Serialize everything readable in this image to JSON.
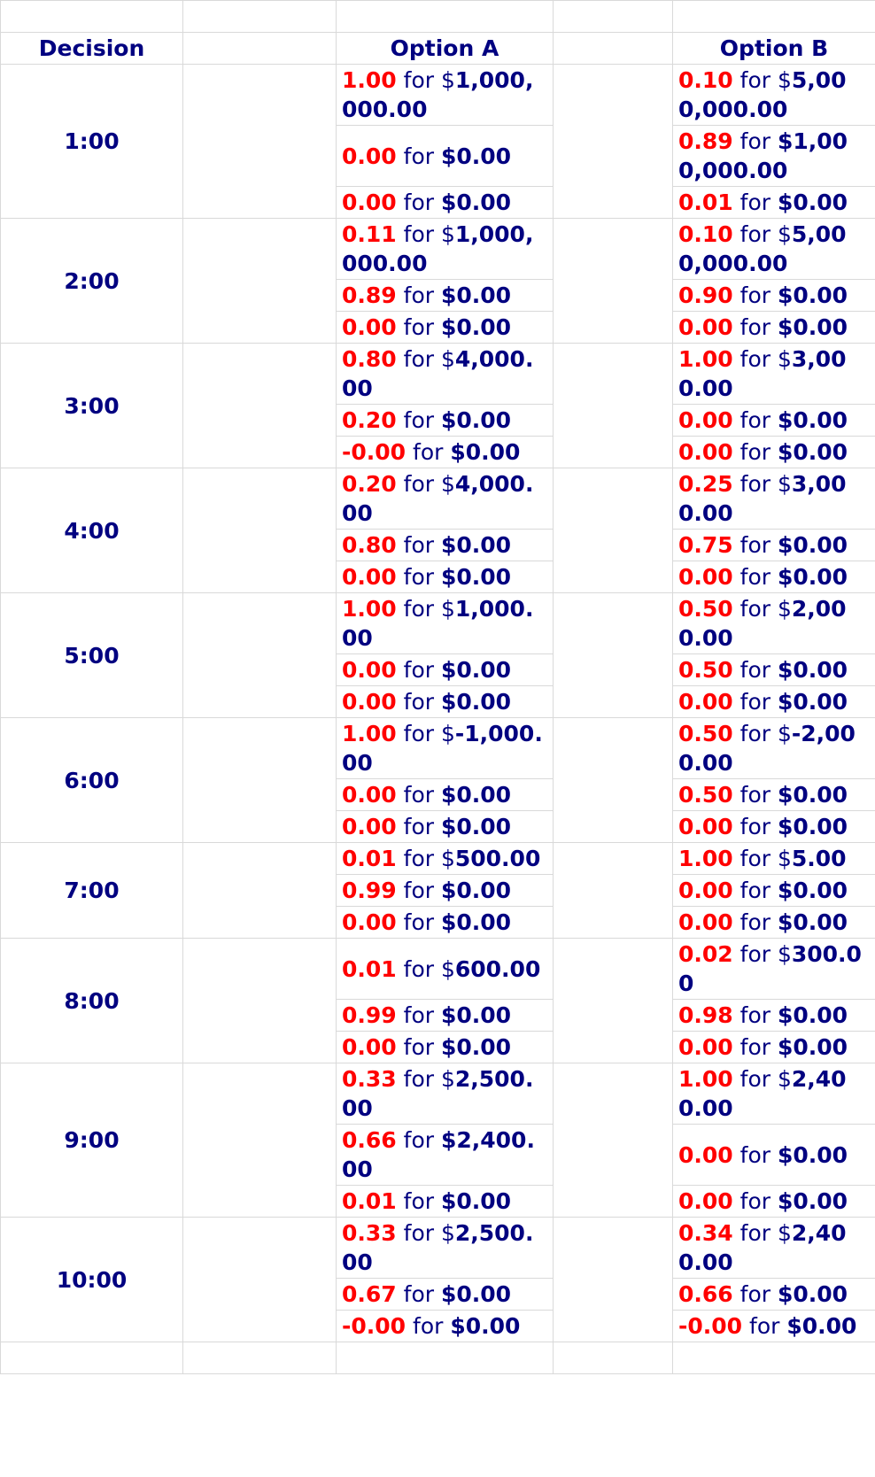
{
  "headers": {
    "decision": "Decision",
    "option_a": "Option A",
    "option_b": "Option B"
  },
  "for_word": "for",
  "colors": {
    "probability": "#ff0000",
    "text": "#000080",
    "grid": "#d9d9d9"
  },
  "decisions": [
    {
      "label": "1:00",
      "a": [
        {
          "p": "1.00",
          "d": "$",
          "amt": "1,000,000.00"
        },
        {
          "p": "0.00",
          "d": "",
          "amt": "$0.00"
        },
        {
          "p": "0.00",
          "d": "",
          "amt": "$0.00"
        }
      ],
      "b": [
        {
          "p": "0.10",
          "d": "$",
          "amt": "5,000,000.00"
        },
        {
          "p": "0.89",
          "d": "",
          "amt": "$1,000,000.00"
        },
        {
          "p": "0.01",
          "d": "",
          "amt": "$0.00"
        }
      ]
    },
    {
      "label": "2:00",
      "a": [
        {
          "p": "0.11",
          "d": "$",
          "amt": "1,000,000.00"
        },
        {
          "p": "0.89",
          "d": "",
          "amt": "$0.00"
        },
        {
          "p": "0.00",
          "d": "",
          "amt": "$0.00"
        }
      ],
      "b": [
        {
          "p": "0.10",
          "d": "$",
          "amt": "5,000,000.00"
        },
        {
          "p": "0.90",
          "d": "",
          "amt": "$0.00"
        },
        {
          "p": "0.00",
          "d": "",
          "amt": "$0.00"
        }
      ]
    },
    {
      "label": "3:00",
      "a": [
        {
          "p": "0.80",
          "d": "$",
          "amt": "4,000.00"
        },
        {
          "p": "0.20",
          "d": "",
          "amt": "$0.00"
        },
        {
          "p": "-0.00",
          "d": "",
          "amt": "$0.00"
        }
      ],
      "b": [
        {
          "p": "1.00",
          "d": "$",
          "amt": "3,000.00"
        },
        {
          "p": "0.00",
          "d": "",
          "amt": "$0.00"
        },
        {
          "p": "0.00",
          "d": "",
          "amt": "$0.00"
        }
      ]
    },
    {
      "label": "4:00",
      "a": [
        {
          "p": "0.20",
          "d": "$",
          "amt": "4,000.00"
        },
        {
          "p": "0.80",
          "d": "",
          "amt": "$0.00"
        },
        {
          "p": "0.00",
          "d": "",
          "amt": "$0.00"
        }
      ],
      "b": [
        {
          "p": "0.25",
          "d": "$",
          "amt": "3,000.00"
        },
        {
          "p": "0.75",
          "d": "",
          "amt": "$0.00"
        },
        {
          "p": "0.00",
          "d": "",
          "amt": "$0.00"
        }
      ]
    },
    {
      "label": "5:00",
      "a": [
        {
          "p": "1.00",
          "d": "$",
          "amt": "1,000.00"
        },
        {
          "p": "0.00",
          "d": "",
          "amt": "$0.00"
        },
        {
          "p": "0.00",
          "d": "",
          "amt": "$0.00"
        }
      ],
      "b": [
        {
          "p": "0.50",
          "d": "$",
          "amt": "2,000.00"
        },
        {
          "p": "0.50",
          "d": "",
          "amt": "$0.00"
        },
        {
          "p": "0.00",
          "d": "",
          "amt": "$0.00"
        }
      ]
    },
    {
      "label": "6:00",
      "a": [
        {
          "p": "1.00",
          "d": "$",
          "amt": "-1,000.00"
        },
        {
          "p": "0.00",
          "d": "",
          "amt": "$0.00"
        },
        {
          "p": "0.00",
          "d": "",
          "amt": "$0.00"
        }
      ],
      "b": [
        {
          "p": "0.50",
          "d": "$",
          "amt": "-2,000.00"
        },
        {
          "p": "0.50",
          "d": "",
          "amt": "$0.00"
        },
        {
          "p": "0.00",
          "d": "",
          "amt": "$0.00"
        }
      ]
    },
    {
      "label": "7:00",
      "a": [
        {
          "p": "0.01",
          "d": "$",
          "amt": "500.00"
        },
        {
          "p": "0.99",
          "d": "",
          "amt": "$0.00"
        },
        {
          "p": "0.00",
          "d": "",
          "amt": "$0.00"
        }
      ],
      "b": [
        {
          "p": "1.00",
          "d": "$",
          "amt": "5.00"
        },
        {
          "p": "0.00",
          "d": "",
          "amt": "$0.00"
        },
        {
          "p": "0.00",
          "d": "",
          "amt": "$0.00"
        }
      ]
    },
    {
      "label": "8:00",
      "a": [
        {
          "p": "0.01",
          "d": "$",
          "amt": "600.00"
        },
        {
          "p": "0.99",
          "d": "",
          "amt": "$0.00"
        },
        {
          "p": "0.00",
          "d": "",
          "amt": "$0.00"
        }
      ],
      "b": [
        {
          "p": "0.02",
          "d": "$",
          "amt": "300.00"
        },
        {
          "p": "0.98",
          "d": "",
          "amt": "$0.00"
        },
        {
          "p": "0.00",
          "d": "",
          "amt": "$0.00"
        }
      ]
    },
    {
      "label": "9:00",
      "a": [
        {
          "p": "0.33",
          "d": "$",
          "amt": "2,500.00"
        },
        {
          "p": "0.66",
          "d": "",
          "amt": "$2,400.00"
        },
        {
          "p": "0.01",
          "d": "",
          "amt": "$0.00"
        }
      ],
      "b": [
        {
          "p": "1.00",
          "d": "$",
          "amt": "2,400.00"
        },
        {
          "p": "0.00",
          "d": "",
          "amt": "$0.00"
        },
        {
          "p": "0.00",
          "d": "",
          "amt": "$0.00"
        }
      ]
    },
    {
      "label": "10:00",
      "a": [
        {
          "p": "0.33",
          "d": "$",
          "amt": "2,500.00"
        },
        {
          "p": "0.67",
          "d": "",
          "amt": "$0.00"
        },
        {
          "p": "-0.00",
          "d": "",
          "amt": "$0.00"
        }
      ],
      "b": [
        {
          "p": "0.34",
          "d": "$",
          "amt": "2,400.00"
        },
        {
          "p": "0.66",
          "d": "",
          "amt": "$0.00"
        },
        {
          "p": "-0.00",
          "d": "",
          "amt": "$0.00"
        }
      ]
    }
  ]
}
